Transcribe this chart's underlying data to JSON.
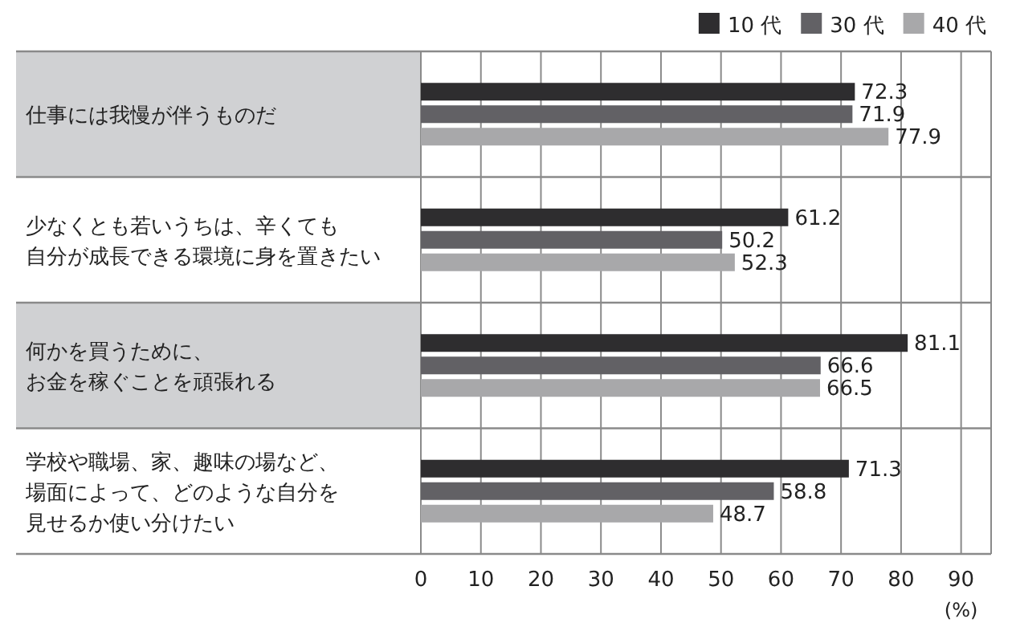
{
  "chart_data": {
    "type": "bar",
    "orientation": "horizontal",
    "categories": [
      "仕事には我慢が伴うものだ",
      "少なくとも若いうちは、辛くても自分が成長できる環境に身を置きたい",
      "何かを買うために、お金を稼ぐことを頑張れる",
      "学校や職場、家、趣味の場など、場面によって、どのような自分を見せるか使い分けたい"
    ],
    "series": [
      {
        "name": "10 代",
        "color": "#2e2d2f",
        "values": [
          72.3,
          61.2,
          81.1,
          71.3
        ]
      },
      {
        "name": "30 代",
        "color": "#626165",
        "values": [
          71.9,
          50.2,
          66.6,
          58.8
        ]
      },
      {
        "name": "40 代",
        "color": "#a8a8aa",
        "values": [
          77.9,
          52.3,
          66.5,
          48.7
        ]
      }
    ],
    "xlim": [
      0,
      95
    ],
    "xticks": [
      0,
      10,
      20,
      30,
      40,
      50,
      60,
      70,
      80,
      90
    ],
    "xlabel": "(%)",
    "data_labels": true,
    "grid": "x",
    "legend": "top right"
  }
}
